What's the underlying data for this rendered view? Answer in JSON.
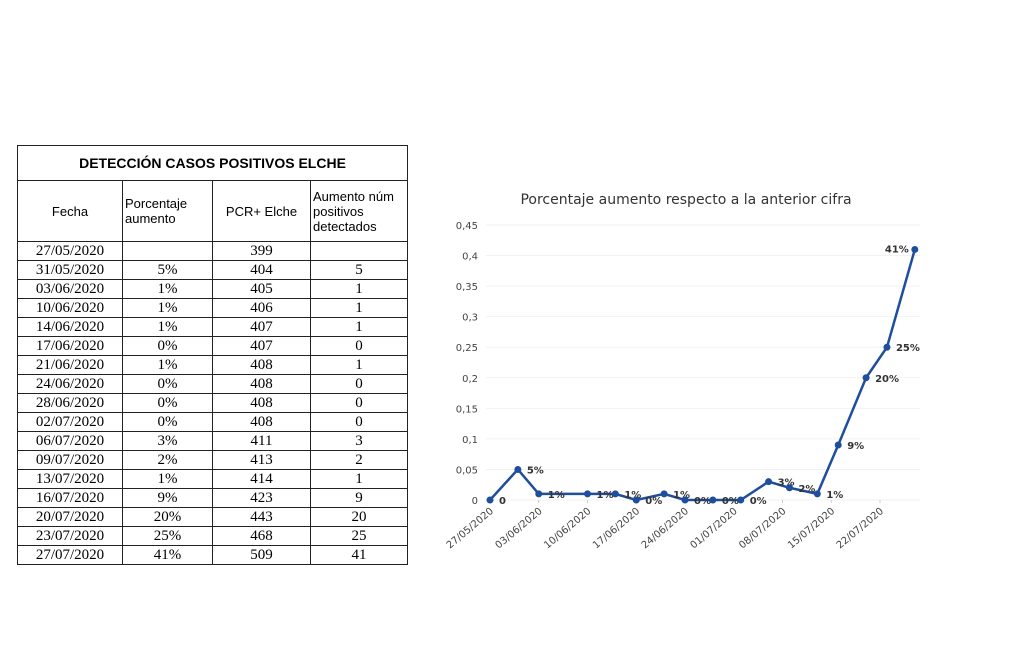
{
  "table": {
    "title": "DETECCIÓN CASOS POSITIVOS ELCHE",
    "headers": [
      "Fecha",
      "Porcentaje aumento",
      "PCR+ Elche",
      "Aumento núm positivos detectados"
    ],
    "rows": [
      [
        "27/05/2020",
        null,
        "399",
        null
      ],
      [
        "31/05/2020",
        "5%",
        "404",
        "5"
      ],
      [
        "03/06/2020",
        "1%",
        "405",
        "1"
      ],
      [
        "10/06/2020",
        "1%",
        "406",
        "1"
      ],
      [
        "14/06/2020",
        "1%",
        "407",
        "1"
      ],
      [
        "17/06/2020",
        "0%",
        "407",
        "0"
      ],
      [
        "21/06/2020",
        "1%",
        "408",
        "1"
      ],
      [
        "24/06/2020",
        "0%",
        "408",
        "0"
      ],
      [
        "28/06/2020",
        "0%",
        "408",
        "0"
      ],
      [
        "02/07/2020",
        "0%",
        "408",
        "0"
      ],
      [
        "06/07/2020",
        "3%",
        "411",
        "3"
      ],
      [
        "09/07/2020",
        "2%",
        "413",
        "2"
      ],
      [
        "13/07/2020",
        "1%",
        "414",
        "1"
      ],
      [
        "16/07/2020",
        "9%",
        "423",
        "9"
      ],
      [
        "20/07/2020",
        "20%",
        "443",
        "20"
      ],
      [
        "23/07/2020",
        "25%",
        "468",
        "25"
      ],
      [
        "27/07/2020",
        "41%",
        "509",
        "41"
      ]
    ]
  },
  "chart_data": {
    "type": "line",
    "title": "Porcentaje aumento respecto a la anterior cifra",
    "x": [
      "27/05/2020",
      "31/05/2020",
      "03/06/2020",
      "10/06/2020",
      "14/06/2020",
      "17/06/2020",
      "21/06/2020",
      "24/06/2020",
      "28/06/2020",
      "02/07/2020",
      "06/07/2020",
      "09/07/2020",
      "13/07/2020",
      "16/07/2020",
      "20/07/2020",
      "23/07/2020",
      "27/07/2020"
    ],
    "values": [
      0,
      0.05,
      0.01,
      0.01,
      0.01,
      0,
      0.01,
      0,
      0,
      0,
      0.03,
      0.02,
      0.01,
      0.09,
      0.2,
      0.25,
      0.41
    ],
    "value_labels": [
      "0",
      "5%",
      "1%",
      "1%",
      "1%",
      "0%",
      "1%",
      "0%",
      "0%",
      "0%",
      "3%",
      "2%",
      "1%",
      "9%",
      "20%",
      "25%",
      "41%"
    ],
    "color": "#1f4e9c",
    "xticks": [
      "27/05/2020",
      "03/06/2020",
      "10/06/2020",
      "17/06/2020",
      "24/06/2020",
      "01/07/2020",
      "08/07/2020",
      "15/07/2020",
      "22/07/2020"
    ],
    "ylim": [
      0,
      0.45
    ],
    "yticks": [
      0,
      {
        "value": 0.05,
        "label": "0,05"
      },
      {
        "value": 0.1,
        "label": "0,1"
      },
      {
        "value": 0.15,
        "label": "0,15"
      },
      {
        "value": 0.2,
        "label": "0,2"
      },
      {
        "value": 0.25,
        "label": "0,25"
      },
      {
        "value": 0.3,
        "label": "0,3"
      },
      {
        "value": 0.35,
        "label": "0,35"
      },
      {
        "value": 0.4,
        "label": "0,4"
      },
      {
        "value": 0.45,
        "label": "0,45"
      }
    ]
  }
}
